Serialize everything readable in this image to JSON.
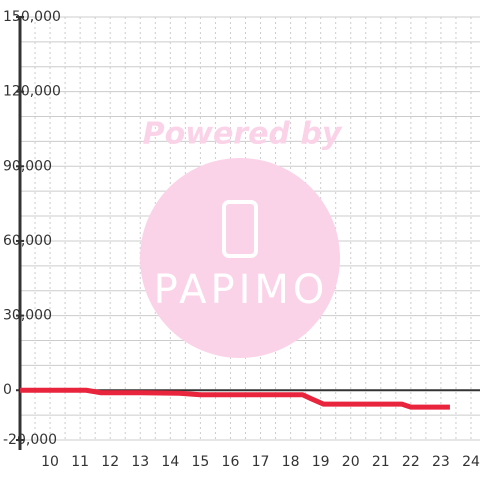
{
  "chart_data": {
    "type": "line",
    "watermark": {
      "line1": "Powered by",
      "line2": "PAPIMO"
    },
    "x": [
      9,
      11.2,
      11.7,
      13,
      14.3,
      15,
      18.4,
      18.7,
      19.1,
      21.7,
      22,
      23.3
    ],
    "series": [
      {
        "color": "#e8253c",
        "values": [
          0,
          0,
          -1000,
          -1000,
          -1200,
          -1800,
          -1800,
          -3500,
          -5600,
          -5600,
          -6800,
          -6800
        ]
      }
    ],
    "xlim": [
      9,
      24.3
    ],
    "ylim": [
      -20000,
      150000
    ],
    "xticks": [
      10,
      11,
      12,
      13,
      14,
      15,
      16,
      17,
      18,
      19,
      20,
      21,
      22,
      23,
      24
    ],
    "x_minor_ticks": [
      9.5,
      10.5,
      11.5,
      12.5,
      13.5,
      14.5,
      15.5,
      16.5,
      17.5,
      18.5,
      19.5,
      20.5,
      21.5,
      22.5,
      23.5
    ],
    "yticks": [
      {
        "value": -20000,
        "label": "-20,000"
      },
      0,
      {
        "value": 30000,
        "label": "30,000"
      },
      {
        "value": 60000,
        "label": "60,000"
      },
      {
        "value": 90000,
        "label": "90,000"
      },
      {
        "value": 120000,
        "label": "120,000"
      },
      {
        "value": 150000,
        "label": "150,000"
      }
    ],
    "y_minor_ticks": [
      -10000,
      10000,
      20000,
      40000,
      50000,
      70000,
      80000,
      100000,
      110000,
      130000,
      140000
    ],
    "grid": true
  }
}
